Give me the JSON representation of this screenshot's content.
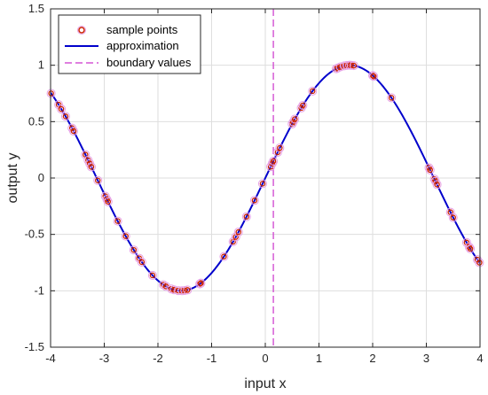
{
  "chart_data": {
    "type": "line",
    "xlabel": "input x",
    "ylabel": "output y",
    "xlim": [
      -4,
      4
    ],
    "ylim": [
      -1.5,
      1.5
    ],
    "xticks": [
      -4,
      -3,
      -2,
      -1,
      0,
      1,
      2,
      3,
      4
    ],
    "yticks": [
      -1.5,
      -1,
      -0.5,
      0,
      0.5,
      1,
      1.5
    ],
    "grid": true,
    "legend_position": "top-left",
    "legend": {
      "samples": "sample points",
      "approx": "approximation",
      "boundary": "boundary values"
    },
    "series": [
      {
        "name": "approximation",
        "function": "sin(x)",
        "x_range": [
          -4,
          4
        ],
        "color": "#0000cc"
      },
      {
        "name": "sample points",
        "color": "#cc2200",
        "x": [
          -3.99,
          -3.85,
          -3.8,
          -3.72,
          -3.6,
          -3.57,
          -3.35,
          -3.3,
          -3.27,
          -3.24,
          -3.12,
          -2.98,
          -2.95,
          -2.93,
          -2.75,
          -2.6,
          -2.45,
          -2.35,
          -2.3,
          -2.1,
          -1.9,
          -1.85,
          -1.75,
          -1.7,
          -1.62,
          -1.55,
          -1.5,
          -1.45,
          -1.22,
          -1.2,
          -0.77,
          -0.6,
          -0.55,
          -0.5,
          -0.35,
          -0.2,
          -0.05,
          0.1,
          0.13,
          0.15,
          0.23,
          0.27,
          0.5,
          0.52,
          0.55,
          0.67,
          0.7,
          0.88,
          1.32,
          1.35,
          1.4,
          1.47,
          1.52,
          1.57,
          1.6,
          1.65,
          2.0,
          2.02,
          2.35,
          3.05,
          3.07,
          3.15,
          3.17,
          3.2,
          3.45,
          3.5,
          3.75,
          3.8,
          3.82,
          3.95,
          3.99
        ]
      }
    ],
    "boundary_x": 0.15,
    "boundary_color": "#cc33cc"
  }
}
